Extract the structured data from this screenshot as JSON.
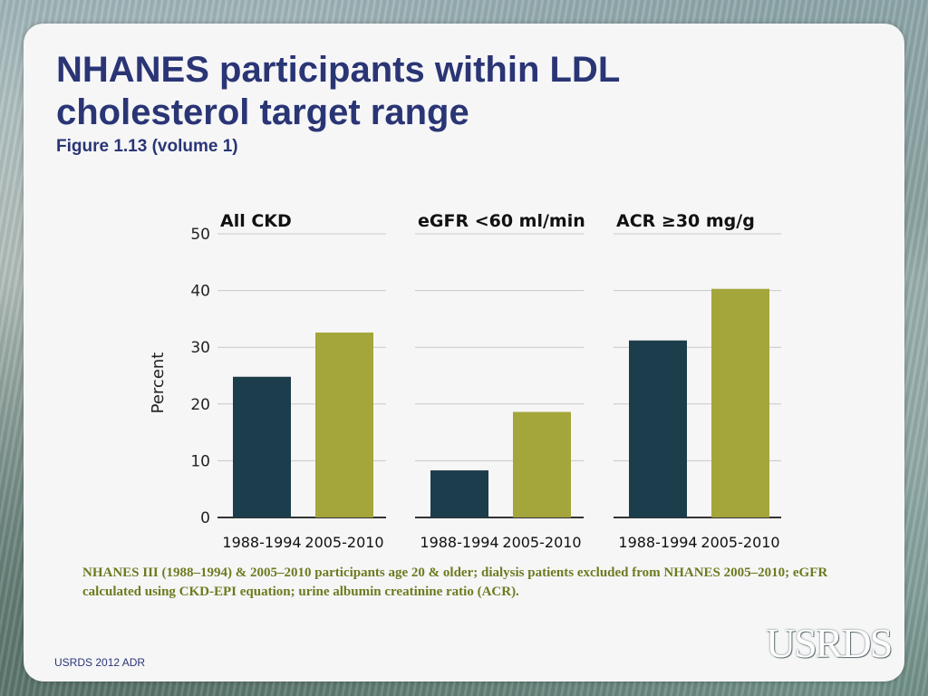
{
  "title": "NHANES participants within LDL cholesterol target range",
  "subtitle": "Figure 1.13 (volume 1)",
  "note": "NHANES III (1988–1994) & 2005–2010 participants age 20 & older; dialysis patients excluded from NHANES 2005–2010; eGFR calculated using CKD-EPI equation; urine albumin creatinine ratio (ACR).",
  "footer": "USRDS 2012 ADR",
  "logo": "USRDS",
  "chart_data": {
    "type": "bar",
    "ylabel": "Percent",
    "ylim": [
      0,
      50
    ],
    "yticks": [
      0,
      10,
      20,
      30,
      40,
      50
    ],
    "grid": true,
    "series_colors": {
      "1988-1994": "#1c3d4b",
      "2005-2010": "#a4a53b"
    },
    "panels": [
      {
        "title": "All CKD",
        "categories": [
          "1988-1994",
          "2005-2010"
        ],
        "values": [
          24.8,
          32.6
        ]
      },
      {
        "title": "eGFR <60 ml/min",
        "categories": [
          "1988-1994",
          "2005-2010"
        ],
        "values": [
          8.3,
          18.6
        ]
      },
      {
        "title": "ACR ≥30 mg/g",
        "categories": [
          "1988-1994",
          "2005-2010"
        ],
        "values": [
          31.2,
          40.3
        ]
      }
    ]
  }
}
